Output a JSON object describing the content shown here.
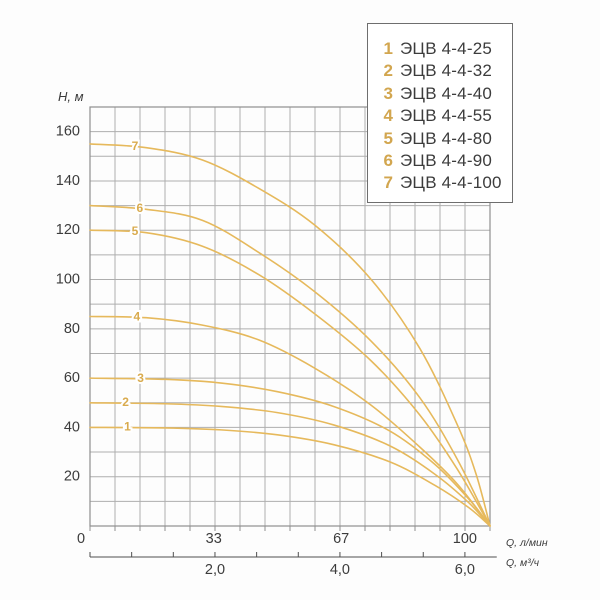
{
  "colors": {
    "background": "#fdfdfd",
    "curve": "#e6b95c",
    "curve_label": "#d9ab4e",
    "legend_number": "#d2a64f",
    "text": "#3c3c3c",
    "grid": "#aeaeae",
    "plot_border": "#8f8f8f",
    "ruler": "#4f4f4f",
    "legend_border": "#6e6e6e"
  },
  "legend": {
    "items": [
      {
        "number": "1",
        "label": "ЭЦВ 4-4-25"
      },
      {
        "number": "2",
        "label": "ЭЦВ 4-4-32"
      },
      {
        "number": "3",
        "label": "ЭЦВ 4-4-40"
      },
      {
        "number": "4",
        "label": "ЭЦВ 4-4-55"
      },
      {
        "number": "5",
        "label": "ЭЦВ 4-4-80"
      },
      {
        "number": "6",
        "label": "ЭЦВ 4-4-90"
      },
      {
        "number": "7",
        "label": "ЭЦВ 4-4-100"
      }
    ]
  },
  "chart_data": {
    "type": "line",
    "title": "",
    "ylabel": "Н, м",
    "xlabel_primary": "Q, л/мин",
    "xlabel_secondary": "Q, м³/ч",
    "y_axis": {
      "min": 0,
      "max": 170,
      "minor_step": 10,
      "ticks": [
        20,
        40,
        60,
        80,
        100,
        120,
        140,
        160
      ]
    },
    "x_axis": {
      "min": 0,
      "max": 106.7,
      "minor_step": 6.67,
      "ticks": [
        0,
        33,
        67,
        100
      ]
    },
    "secondary_x_axis": {
      "tick_labels": [
        "2,0",
        "4,0",
        "6,0"
      ],
      "tick_values": [
        2,
        4,
        6
      ],
      "minor_step": 0.6667,
      "lmin_per_m3h": 16.667,
      "extent": 6.51
    },
    "grid": true,
    "legend_position": "top-right",
    "series": [
      {
        "id": 1,
        "name": "ЭЦВ 4-4-25",
        "curve_label": "1",
        "label_q": 10,
        "points": [
          [
            0,
            40
          ],
          [
            20,
            39.8
          ],
          [
            35,
            39
          ],
          [
            50,
            37
          ],
          [
            65,
            33
          ],
          [
            80,
            26
          ],
          [
            92,
            16.5
          ],
          [
            101,
            7.5
          ],
          [
            106.7,
            0
          ]
        ]
      },
      {
        "id": 2,
        "name": "ЭЦВ 4-4-32",
        "curve_label": "2",
        "label_q": 9.5,
        "points": [
          [
            0,
            50
          ],
          [
            20,
            49.6
          ],
          [
            35,
            48.5
          ],
          [
            50,
            46
          ],
          [
            65,
            41
          ],
          [
            80,
            32.5
          ],
          [
            92,
            21
          ],
          [
            101,
            9.5
          ],
          [
            106.7,
            0
          ]
        ]
      },
      {
        "id": 3,
        "name": "ЭЦВ 4-4-40",
        "curve_label": "3",
        "label_q": 13.5,
        "points": [
          [
            0,
            60
          ],
          [
            20,
            59.5
          ],
          [
            35,
            58
          ],
          [
            50,
            54.5
          ],
          [
            65,
            48.5
          ],
          [
            80,
            38.5
          ],
          [
            92,
            25
          ],
          [
            101,
            11
          ],
          [
            106.7,
            0
          ]
        ]
      },
      {
        "id": 4,
        "name": "ЭЦВ 4-4-55",
        "curve_label": "4",
        "label_q": 12.5,
        "points": [
          [
            0,
            85
          ],
          [
            15,
            84.5
          ],
          [
            30,
            81.5
          ],
          [
            45,
            75.5
          ],
          [
            60,
            64
          ],
          [
            75,
            49
          ],
          [
            88,
            32
          ],
          [
            98,
            17
          ],
          [
            106.7,
            0
          ]
        ]
      },
      {
        "id": 5,
        "name": "ЭЦВ 4-4-80",
        "curve_label": "5",
        "label_q": 12,
        "points": [
          [
            0,
            120
          ],
          [
            15,
            119
          ],
          [
            30,
            113.5
          ],
          [
            45,
            102
          ],
          [
            60,
            86
          ],
          [
            75,
            67
          ],
          [
            88,
            45
          ],
          [
            98,
            23
          ],
          [
            106.7,
            0
          ]
        ]
      },
      {
        "id": 6,
        "name": "ЭЦВ 4-4-90",
        "curve_label": "6",
        "label_q": 13.3,
        "points": [
          [
            0,
            130
          ],
          [
            15,
            128.5
          ],
          [
            30,
            124
          ],
          [
            45,
            111
          ],
          [
            60,
            95
          ],
          [
            75,
            75
          ],
          [
            88,
            52
          ],
          [
            98,
            27
          ],
          [
            106.7,
            0
          ]
        ]
      },
      {
        "id": 7,
        "name": "ЭЦВ 4-4-100",
        "curve_label": "7",
        "label_q": 12,
        "points": [
          [
            0,
            155
          ],
          [
            15,
            153.5
          ],
          [
            30,
            148.5
          ],
          [
            45,
            137
          ],
          [
            60,
            122
          ],
          [
            75,
            100
          ],
          [
            88,
            72
          ],
          [
            98,
            41
          ],
          [
            103,
            21
          ],
          [
            106.7,
            0
          ]
        ]
      }
    ]
  }
}
